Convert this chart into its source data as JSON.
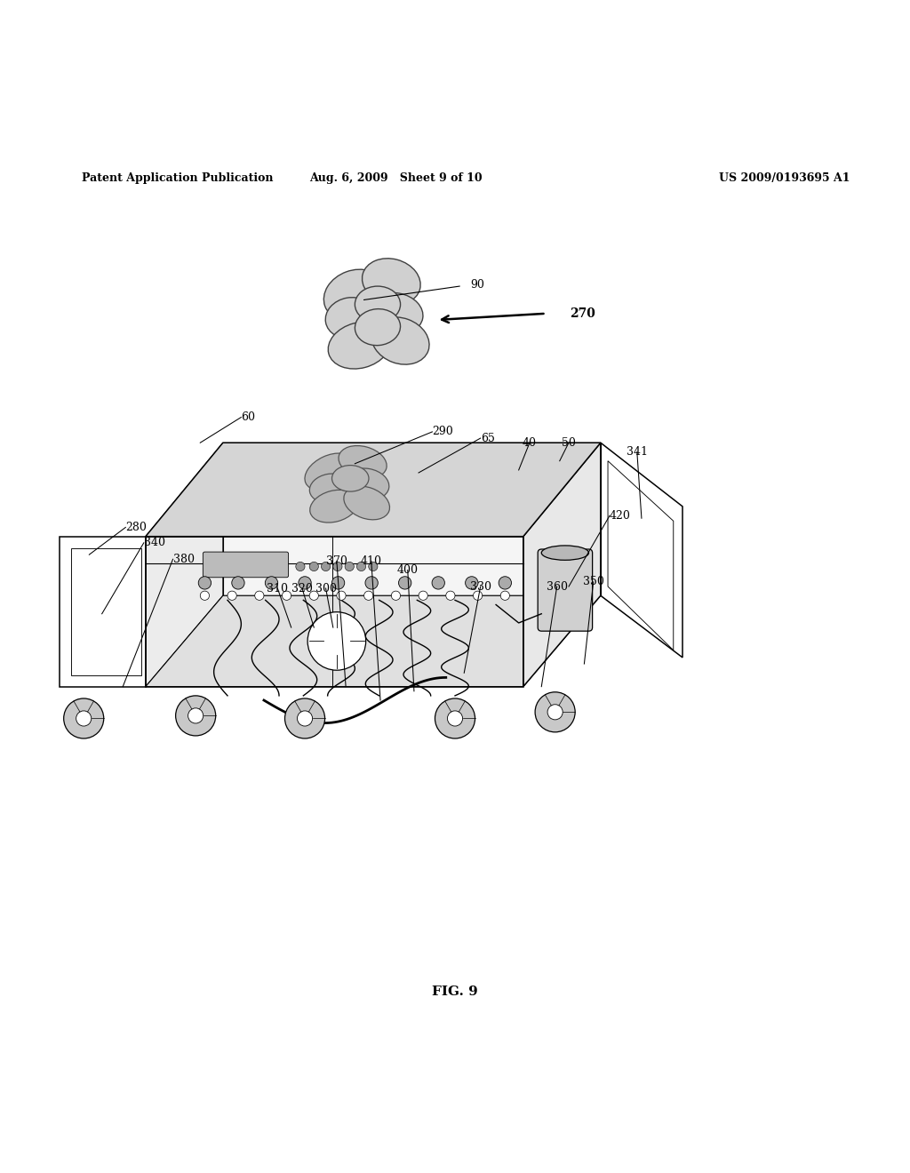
{
  "background_color": "#ffffff",
  "header_left": "Patent Application Publication",
  "header_mid": "Aug. 6, 2009   Sheet 9 of 10",
  "header_right": "US 2009/0193695 A1",
  "figure_label": "FIG. 9"
}
